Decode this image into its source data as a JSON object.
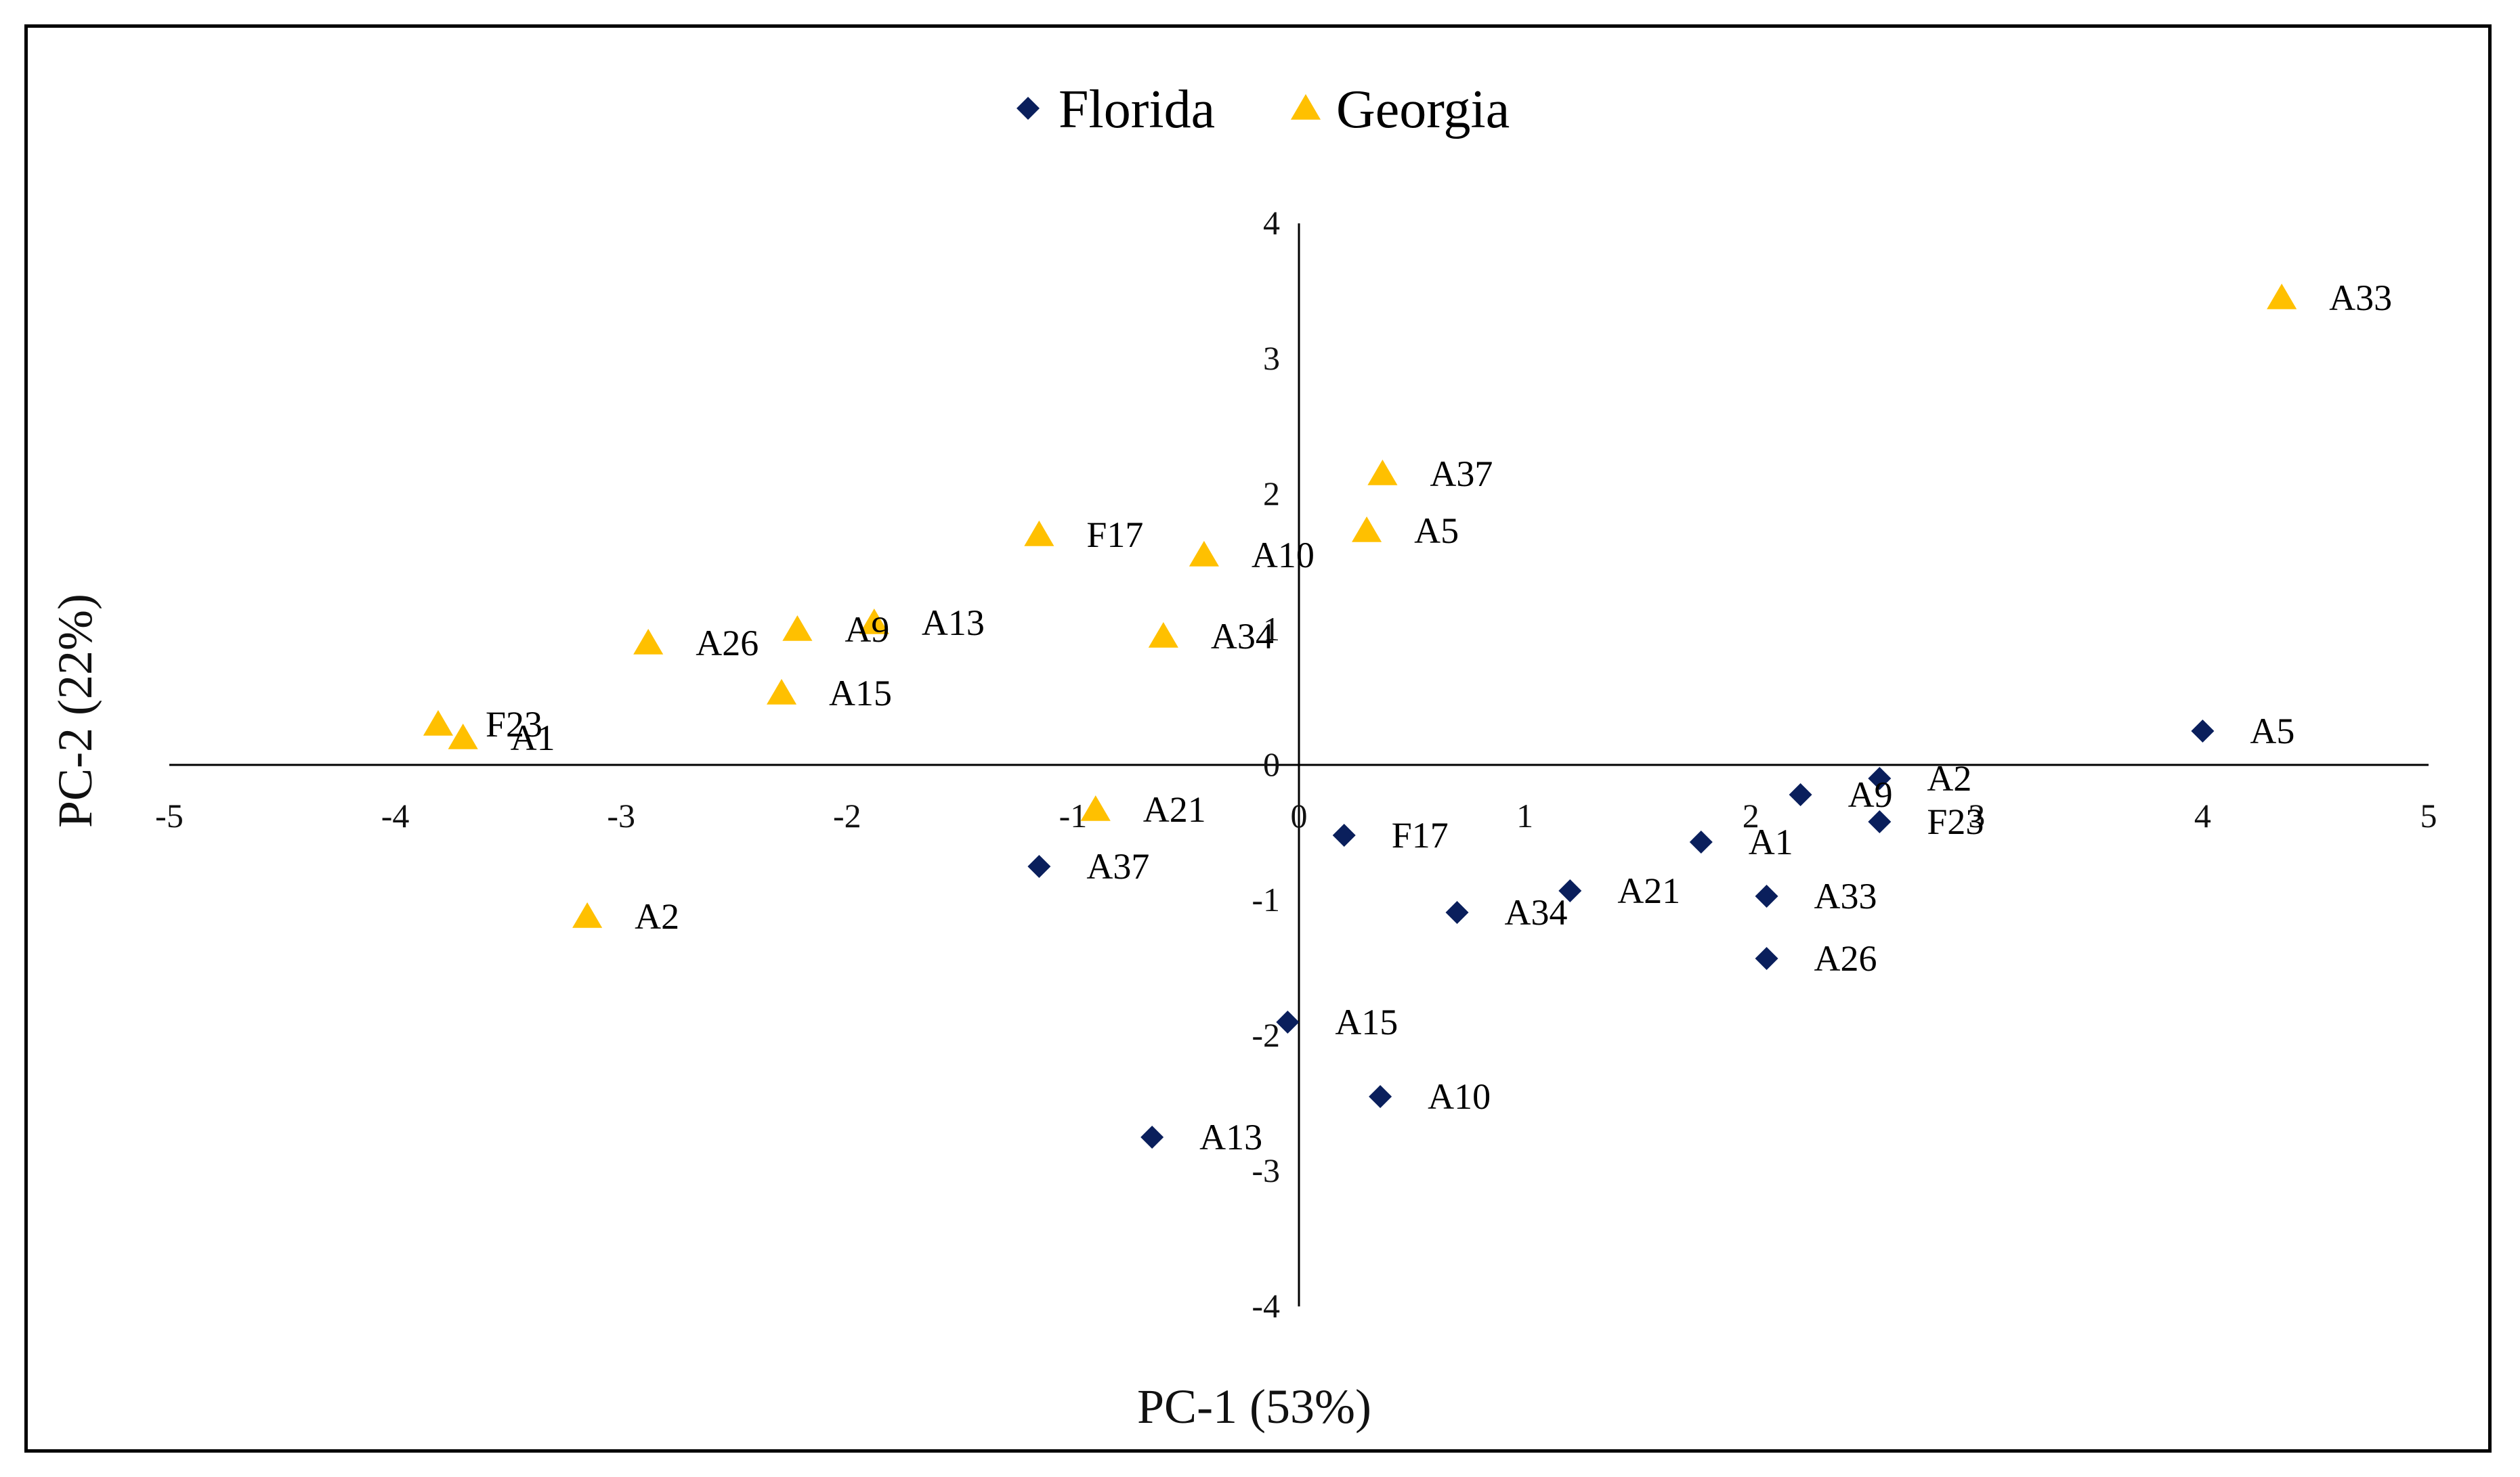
{
  "chart_data": {
    "type": "scatter",
    "xlabel": "PC-1 (53%)",
    "ylabel": "PC-2 (22%)",
    "xlim": [
      -5,
      5
    ],
    "ylim": [
      -4,
      4
    ],
    "x_ticks": [
      "-5",
      "-4",
      "-3",
      "-2",
      "-1",
      "0",
      "1",
      "2",
      "3",
      "4",
      "5"
    ],
    "y_ticks": [
      "-4",
      "-3",
      "-2",
      "-1",
      "0",
      "1",
      "2",
      "3",
      "4"
    ],
    "legend_position": "top-center",
    "grid": false,
    "series": [
      {
        "name": "Florida",
        "marker": "diamond",
        "color": "#0a1f5c",
        "points": [
          {
            "label": "A5",
            "x": 4.0,
            "y": 0.25
          },
          {
            "label": "A2",
            "x": 2.57,
            "y": -0.1
          },
          {
            "label": "A9",
            "x": 2.22,
            "y": -0.22
          },
          {
            "label": "F23",
            "x": 2.57,
            "y": -0.42
          },
          {
            "label": "A1",
            "x": 1.78,
            "y": -0.57
          },
          {
            "label": "F17",
            "x": 0.2,
            "y": -0.52
          },
          {
            "label": "A33",
            "x": 2.07,
            "y": -0.97
          },
          {
            "label": "A21",
            "x": 1.2,
            "y": -0.93
          },
          {
            "label": "A34",
            "x": 0.7,
            "y": -1.09
          },
          {
            "label": "A26",
            "x": 2.07,
            "y": -1.43
          },
          {
            "label": "A37",
            "x": -1.15,
            "y": -0.75
          },
          {
            "label": "A15",
            "x": -0.05,
            "y": -1.9
          },
          {
            "label": "A10",
            "x": 0.36,
            "y": -2.45
          },
          {
            "label": "A13",
            "x": -0.65,
            "y": -2.75
          }
        ]
      },
      {
        "name": "Georgia",
        "marker": "triangle",
        "color": "#ffc000",
        "points": [
          {
            "label": "A33",
            "x": 4.35,
            "y": 3.45
          },
          {
            "label": "A37",
            "x": 0.37,
            "y": 2.15
          },
          {
            "label": "A5",
            "x": 0.3,
            "y": 1.73
          },
          {
            "label": "F17",
            "x": -1.15,
            "y": 1.7
          },
          {
            "label": "A10",
            "x": -0.42,
            "y": 1.55
          },
          {
            "label": "A13",
            "x": -1.88,
            "y": 1.05
          },
          {
            "label": "A9",
            "x": -2.22,
            "y": 1.0
          },
          {
            "label": "A26",
            "x": -2.88,
            "y": 0.9
          },
          {
            "label": "A34",
            "x": -0.6,
            "y": 0.95
          },
          {
            "label": "A15",
            "x": -2.29,
            "y": 0.53
          },
          {
            "label": "F23",
            "x": -3.81,
            "y": 0.3
          },
          {
            "label": "A1",
            "x": -3.7,
            "y": 0.2
          },
          {
            "label": "A21",
            "x": -0.9,
            "y": -0.33
          },
          {
            "label": "A2",
            "x": -3.15,
            "y": -1.12
          }
        ]
      }
    ]
  }
}
